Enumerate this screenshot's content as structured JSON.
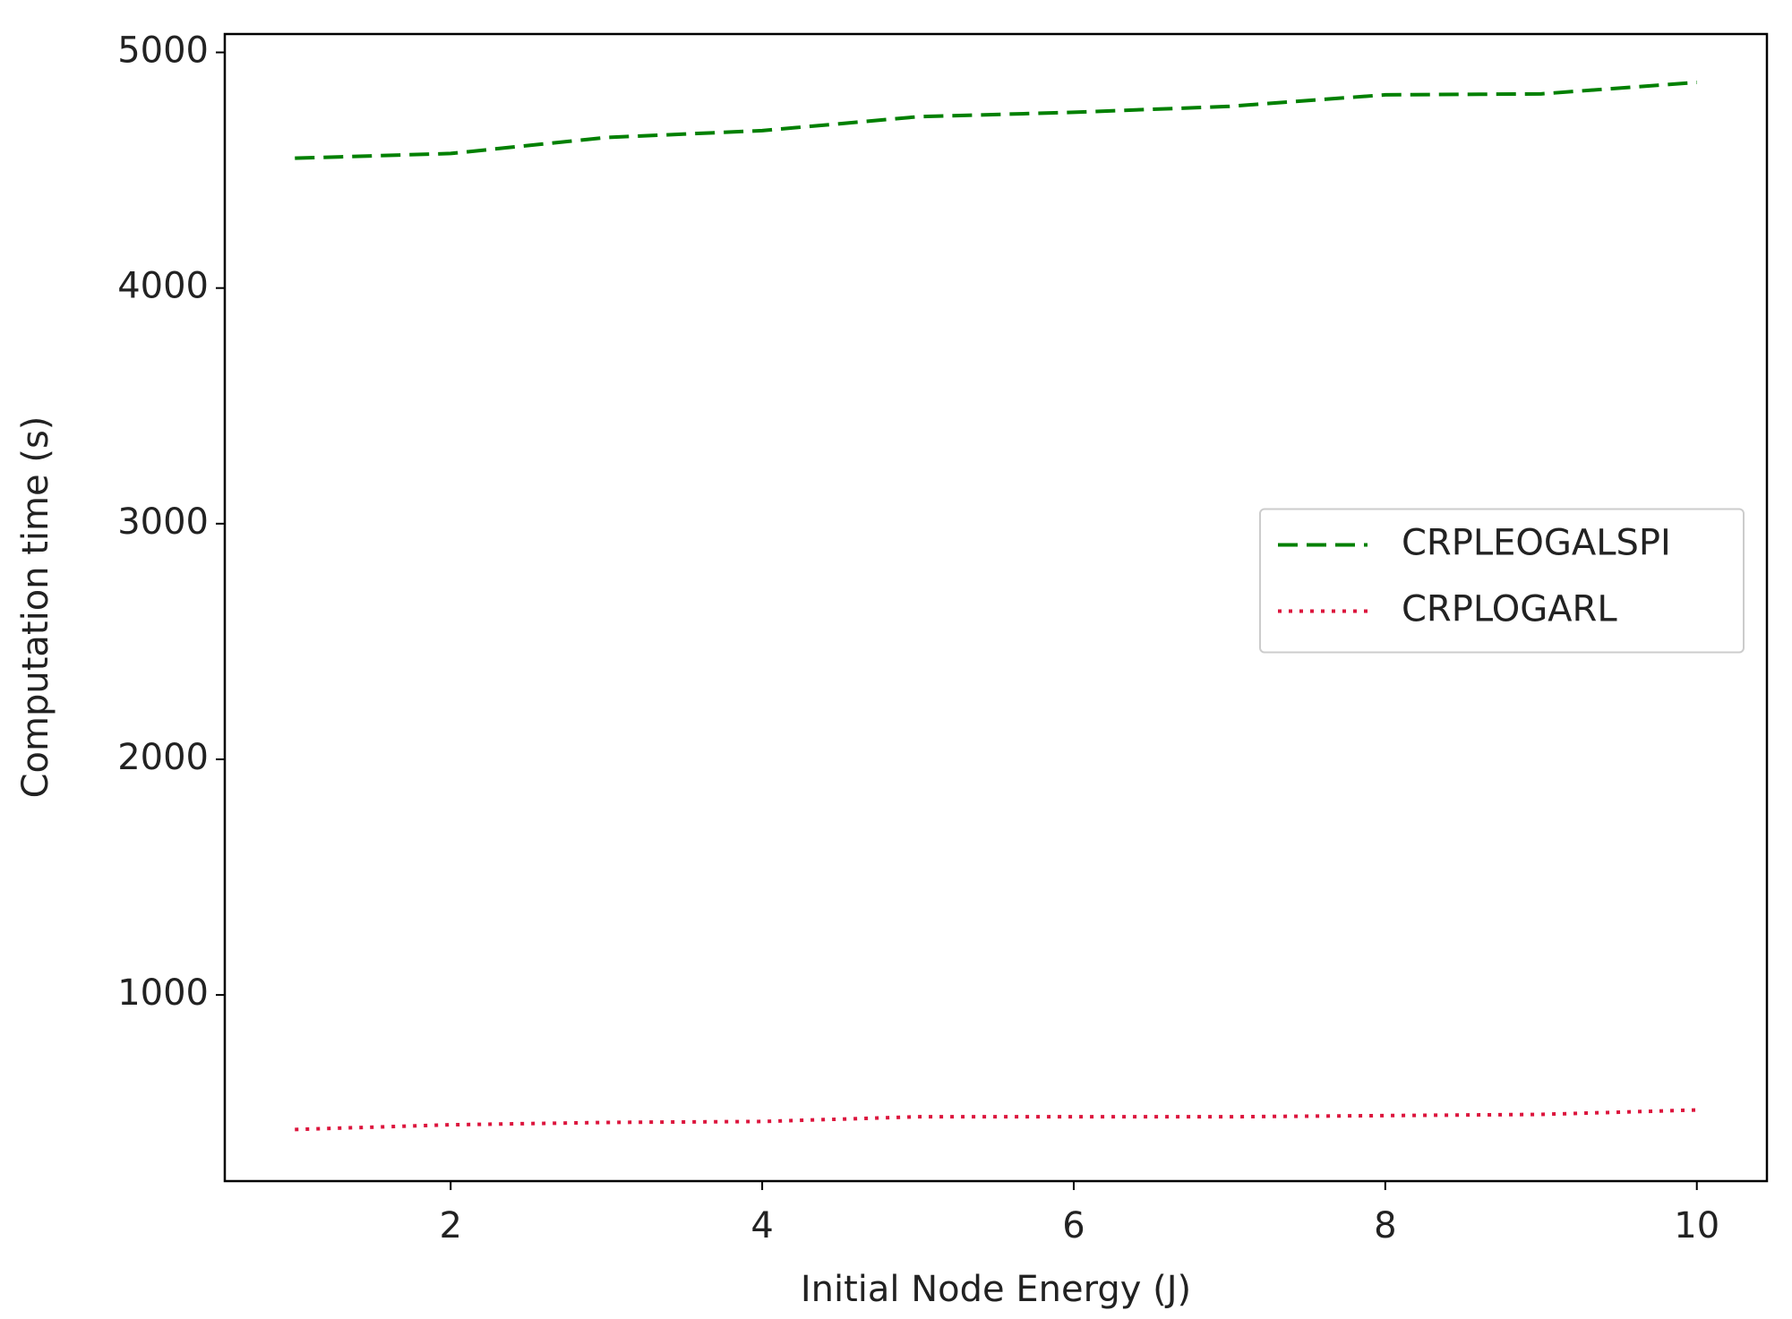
{
  "chart_data": {
    "type": "line",
    "xlabel": "Initial Node Energy (J)",
    "ylabel": "Computation time (s)",
    "x": [
      1,
      2,
      3,
      4,
      5,
      6,
      7,
      8,
      9,
      10
    ],
    "series": [
      {
        "name": "CRPLEOGALSPI",
        "color": "#008000",
        "dash": "dashed",
        "values": [
          4551,
          4571,
          4639,
          4668,
          4727,
          4746,
          4771,
          4820,
          4824,
          4873
        ]
      },
      {
        "name": "CRPLOGARL",
        "color": "#dc143c",
        "dash": "dotted",
        "values": [
          429,
          449,
          459,
          463,
          483,
          483,
          483,
          488,
          493,
          512
        ]
      }
    ],
    "xlim": [
      0.55,
      10.45
    ],
    "ylim": [
      210,
      5078
    ],
    "xticks": [
      2,
      4,
      6,
      8,
      10
    ],
    "yticks": [
      1000,
      2000,
      3000,
      4000,
      5000
    ],
    "legend": "center right",
    "grid": false
  }
}
